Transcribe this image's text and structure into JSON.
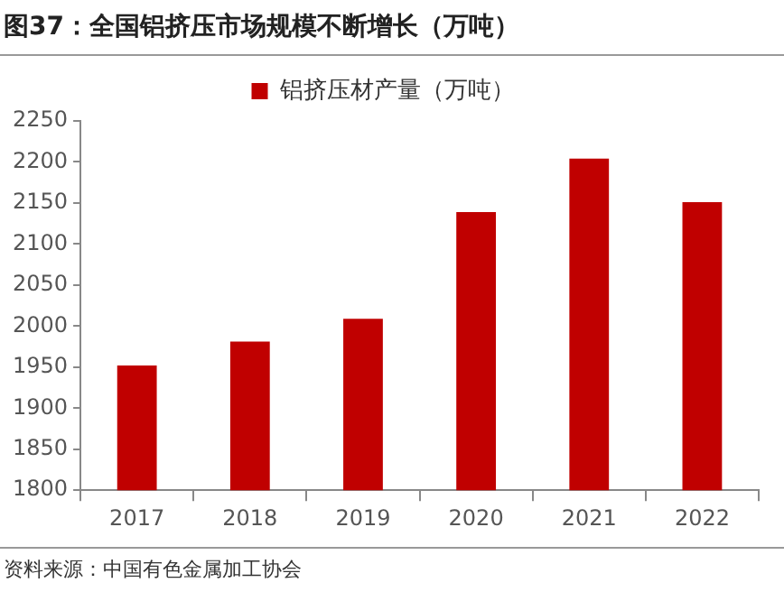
{
  "chart_data": {
    "type": "bar",
    "title": "图37：全国铝挤压市场规模不断增长（万吨）",
    "categories": [
      "2017",
      "2018",
      "2019",
      "2020",
      "2021",
      "2022"
    ],
    "series": [
      {
        "name": "铝挤压材产量（万吨）",
        "color": "#c00000",
        "values": [
          1952,
          1981,
          2009,
          2139,
          2204,
          2151
        ]
      }
    ],
    "ylim": [
      1800,
      2250
    ],
    "yticks": [
      1800,
      1850,
      1900,
      1950,
      2000,
      2050,
      2100,
      2150,
      2200,
      2250
    ],
    "grid": false,
    "legend": "top",
    "annotations": [
      "资料来源：中国有色金属加工协会"
    ]
  }
}
